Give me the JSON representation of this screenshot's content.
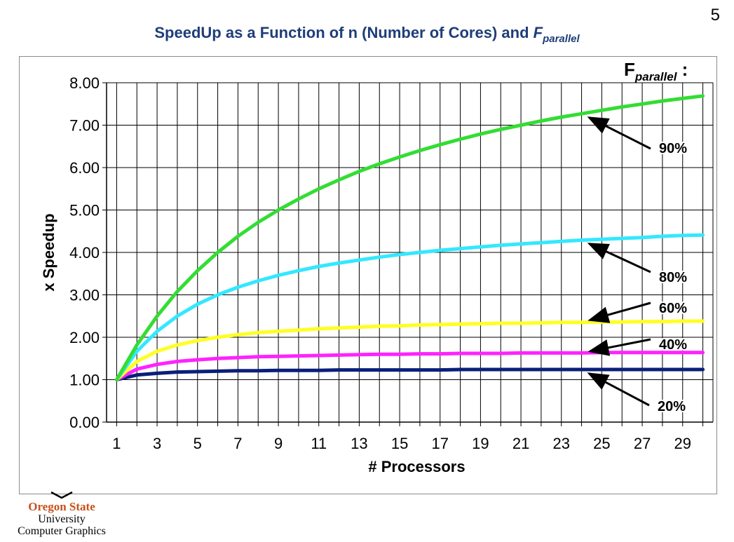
{
  "page": {
    "number": "5"
  },
  "title": {
    "main": "SpeedUp as a Function of n (Number of Cores) and ",
    "f": "F",
    "sub": "parallel"
  },
  "legend_title": {
    "f": "F",
    "sub": "parallel",
    "colon": ":"
  },
  "logo": {
    "name_line1": "Oregon State",
    "name_line2": "University",
    "dept": "Computer Graphics"
  },
  "colors": {
    "title": "#1f3d7a",
    "logo_orange": "#c8511a"
  },
  "chart_data": {
    "type": "line",
    "xlabel": "# Processors",
    "ylabel": "x Speedup",
    "xlim": [
      0.5,
      30.5
    ],
    "ylim": [
      0,
      8
    ],
    "x_ticks": [
      1,
      3,
      5,
      7,
      9,
      11,
      13,
      15,
      17,
      19,
      21,
      23,
      25,
      27,
      29
    ],
    "y_ticks": [
      0,
      1,
      2,
      3,
      4,
      5,
      6,
      7,
      8
    ],
    "y_tick_labels": [
      "0.00",
      "1.00",
      "2.00",
      "3.00",
      "4.00",
      "5.00",
      "6.00",
      "7.00",
      "8.00"
    ],
    "grid": true,
    "x": [
      1,
      2,
      3,
      4,
      5,
      6,
      7,
      8,
      9,
      10,
      11,
      12,
      13,
      14,
      15,
      16,
      17,
      18,
      19,
      20,
      21,
      22,
      23,
      24,
      25,
      26,
      27,
      28,
      29,
      30
    ],
    "series": [
      {
        "name": "90%",
        "color": "#33dd33",
        "values": [
          1.0,
          1.82,
          2.5,
          3.08,
          3.57,
          4.0,
          4.38,
          4.71,
          5.0,
          5.26,
          5.5,
          5.71,
          5.91,
          6.09,
          6.25,
          6.4,
          6.54,
          6.67,
          6.79,
          6.9,
          7.0,
          7.1,
          7.19,
          7.27,
          7.35,
          7.43,
          7.5,
          7.57,
          7.63,
          7.69
        ]
      },
      {
        "name": "80%",
        "color": "#33e8ff",
        "values": [
          1.0,
          1.67,
          2.14,
          2.5,
          2.78,
          3.0,
          3.18,
          3.33,
          3.46,
          3.57,
          3.67,
          3.75,
          3.82,
          3.89,
          3.95,
          4.0,
          4.05,
          4.09,
          4.13,
          4.17,
          4.2,
          4.23,
          4.26,
          4.29,
          4.31,
          4.33,
          4.35,
          4.38,
          4.4,
          4.41
        ]
      },
      {
        "name": "60%",
        "color": "#ffff22",
        "values": [
          1.0,
          1.43,
          1.67,
          1.82,
          1.92,
          2.0,
          2.06,
          2.11,
          2.14,
          2.17,
          2.2,
          2.22,
          2.24,
          2.26,
          2.27,
          2.29,
          2.3,
          2.31,
          2.32,
          2.33,
          2.33,
          2.34,
          2.35,
          2.35,
          2.36,
          2.36,
          2.37,
          2.37,
          2.38,
          2.38
        ]
      },
      {
        "name": "40%",
        "color": "#ff22ff",
        "values": [
          1.0,
          1.25,
          1.36,
          1.43,
          1.47,
          1.5,
          1.52,
          1.54,
          1.55,
          1.56,
          1.57,
          1.58,
          1.59,
          1.6,
          1.6,
          1.61,
          1.61,
          1.62,
          1.62,
          1.62,
          1.63,
          1.63,
          1.63,
          1.63,
          1.64,
          1.64,
          1.64,
          1.64,
          1.64,
          1.64
        ]
      },
      {
        "name": "20%",
        "color": "#0a1f7a",
        "values": [
          1.0,
          1.11,
          1.15,
          1.18,
          1.19,
          1.2,
          1.21,
          1.21,
          1.22,
          1.22,
          1.22,
          1.23,
          1.23,
          1.23,
          1.23,
          1.23,
          1.23,
          1.24,
          1.24,
          1.24,
          1.24,
          1.24,
          1.24,
          1.24,
          1.24,
          1.24,
          1.24,
          1.24,
          1.24,
          1.24
        ]
      }
    ],
    "annotations": [
      {
        "text": "90%",
        "series": "90%",
        "point_x": 24
      },
      {
        "text": "80%",
        "series": "80%",
        "point_x": 24
      },
      {
        "text": "60%",
        "series": "60%",
        "point_x": 24
      },
      {
        "text": "40%",
        "series": "40%",
        "point_x": 24
      },
      {
        "text": "20%",
        "series": "20%",
        "point_x": 24
      }
    ]
  }
}
